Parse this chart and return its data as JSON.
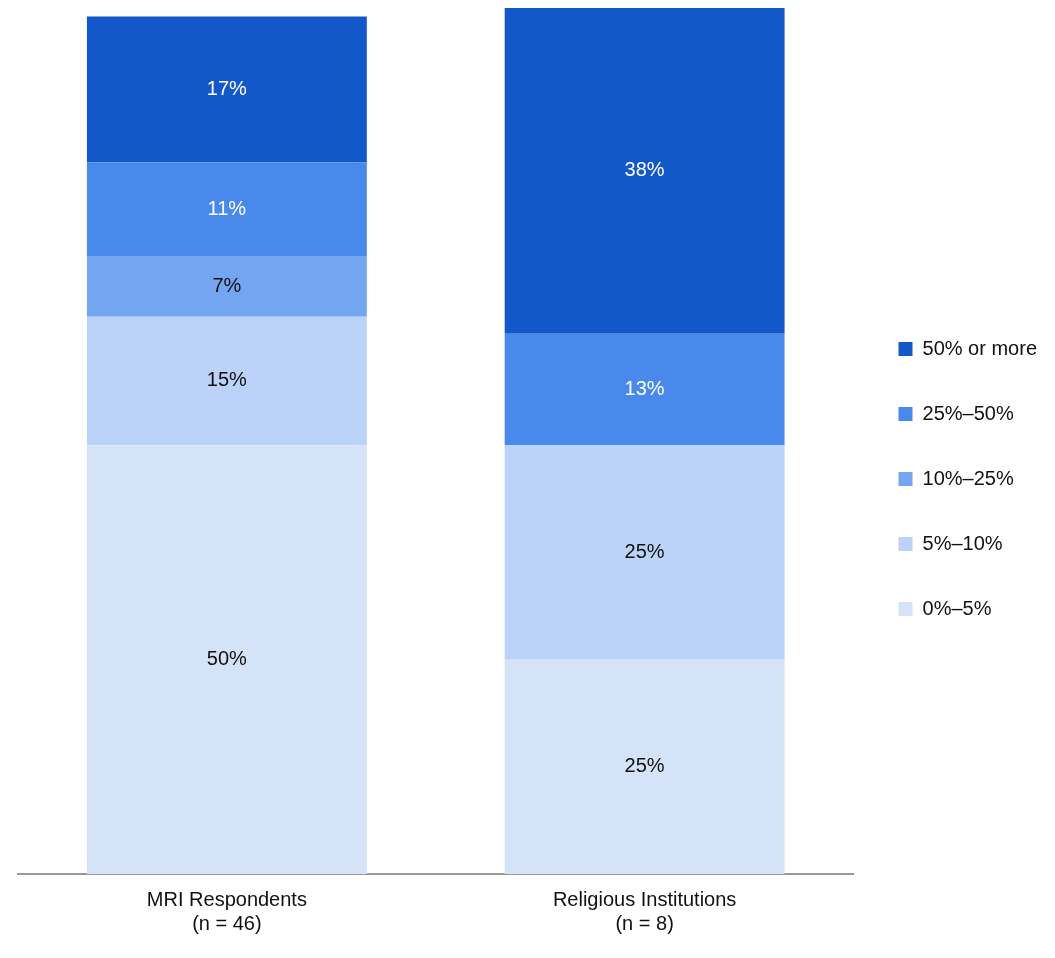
{
  "chart_data": {
    "type": "bar",
    "stacked": true,
    "categories": [
      "MRI Respondents\n(n = 46)",
      "Religious Institutions\n(n = 8)"
    ],
    "series": [
      {
        "name": "0%–5%",
        "color": "#d5e3f9",
        "values": [
          50,
          25
        ],
        "value_labels": [
          "50%",
          "25%"
        ]
      },
      {
        "name": "5%–10%",
        "color": "#bbd3f8",
        "values": [
          15,
          25
        ],
        "value_labels": [
          "15%",
          "25%"
        ]
      },
      {
        "name": "10%–25%",
        "color": "#74a5f0",
        "values": [
          7,
          null
        ],
        "value_labels": [
          "7%",
          null
        ]
      },
      {
        "name": "25%–50%",
        "color": "#4a89ec",
        "values": [
          11,
          13
        ],
        "value_labels": [
          "11%",
          "13%"
        ]
      },
      {
        "name": "50% or more",
        "color": "#1358c8",
        "values": [
          17,
          38
        ],
        "value_labels": [
          "17%",
          "38%"
        ]
      }
    ],
    "ylim": [
      0,
      101
    ],
    "legend": "right",
    "grid": false
  }
}
